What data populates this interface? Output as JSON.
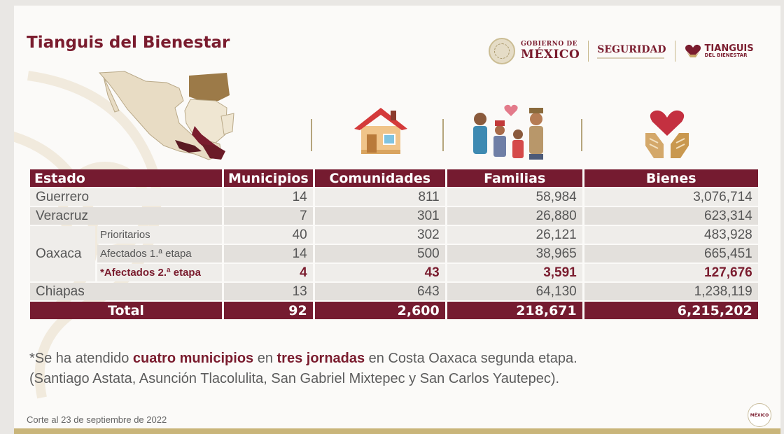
{
  "header": {
    "title": "Tianguis del Bienestar",
    "logos": {
      "gobierno_line1": "GOBIERNO DE",
      "gobierno_line2": "MÉXICO",
      "seguridad": "SEGURIDAD",
      "tianguis_line1": "TIANGUIS",
      "tianguis_line2": "DEL BIENESTAR"
    }
  },
  "colors": {
    "primary": "#751b30",
    "gold": "#c9b57a",
    "text": "#5c5c5c"
  },
  "icons": [
    "mexico-map-icon",
    "house-icon",
    "family-icon",
    "hands-heart-icon"
  ],
  "table": {
    "headers": {
      "estado": "Estado",
      "municipios": "Municipios",
      "comunidades": "Comunidades",
      "familias": "Familias",
      "bienes": "Bienes"
    },
    "rows": [
      {
        "estado": "Guerrero",
        "municipios": "14",
        "comunidades": "811",
        "familias": "58,984",
        "bienes": "3,076,714"
      },
      {
        "estado": "Veracruz",
        "municipios": "7",
        "comunidades": "301",
        "familias": "26,880",
        "bienes": "623,314"
      },
      {
        "estado": "Oaxaca",
        "sub": "Prioritarios",
        "municipios": "40",
        "comunidades": "302",
        "familias": "26,121",
        "bienes": "483,928"
      },
      {
        "sub": "Afectados 1.ª etapa",
        "municipios": "14",
        "comunidades": "500",
        "familias": "38,965",
        "bienes": "665,451"
      },
      {
        "sub": "*Afectados 2.ª etapa",
        "municipios": "4",
        "comunidades": "43",
        "familias": "3,591",
        "bienes": "127,676"
      },
      {
        "estado": "Chiapas",
        "municipios": "13",
        "comunidades": "643",
        "familias": "64,130",
        "bienes": "1,238,119"
      }
    ],
    "total": {
      "label": "Total",
      "municipios": "92",
      "comunidades": "2,600",
      "familias": "218,671",
      "bienes": "6,215,202"
    }
  },
  "note": {
    "p1": "*Se ha atendido ",
    "b1": "cuatro municipios",
    "p2": " en ",
    "b2": "tres jornadas",
    "p3": " en Costa Oaxaca segunda etapa.",
    "line2": "(Santiago Astata, Asunción Tlacolulita, San Gabriel Mixtepec y San Carlos Yautepec)."
  },
  "footer": {
    "corte": "Corte al 23 de septiembre de 2022",
    "corner_logo": "MÉXICO"
  }
}
